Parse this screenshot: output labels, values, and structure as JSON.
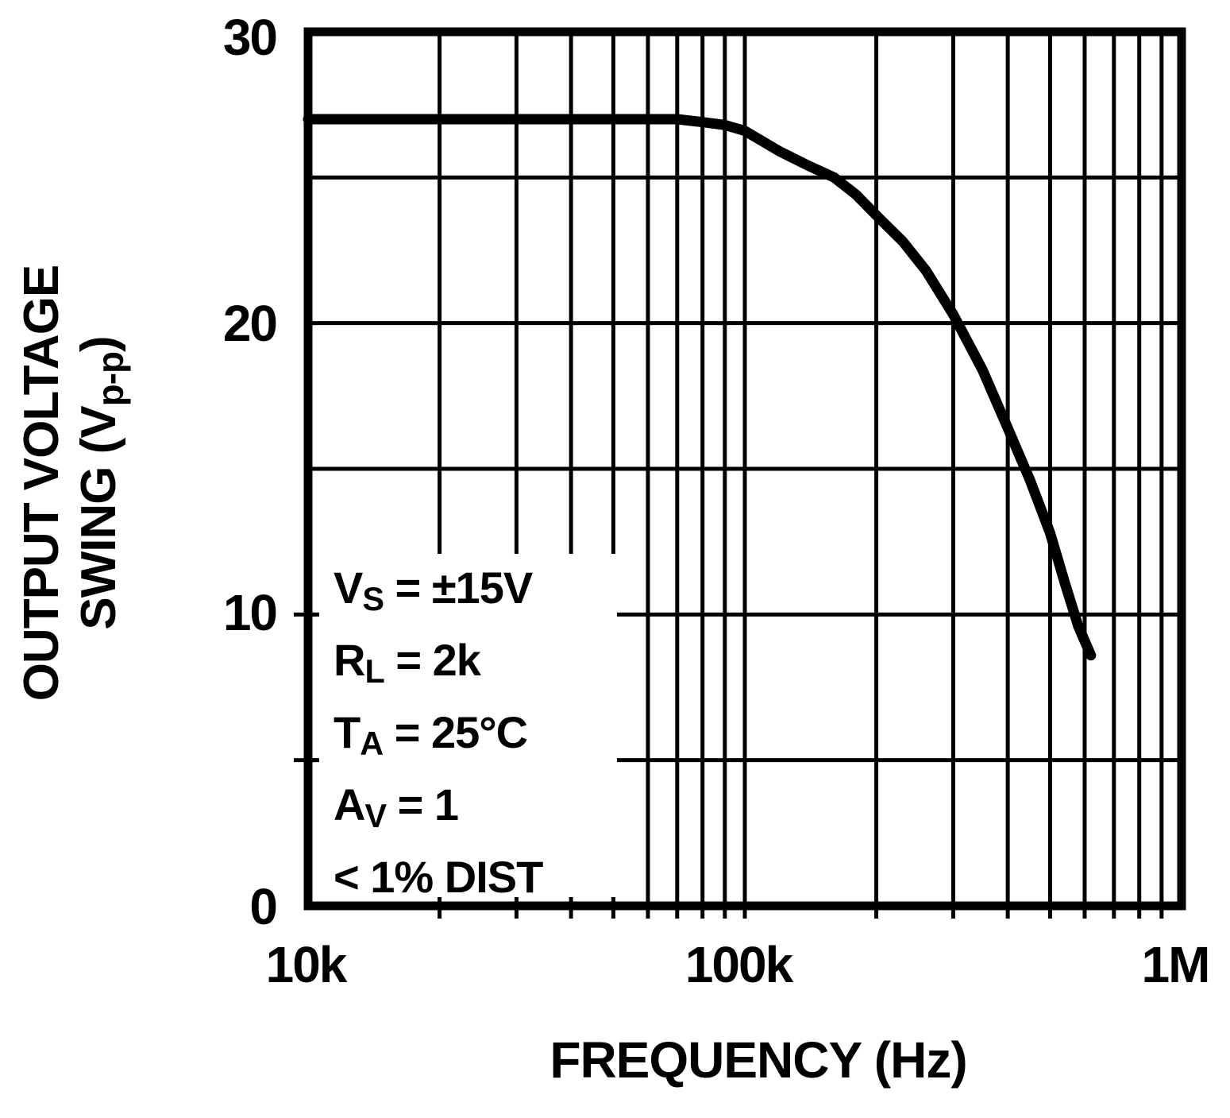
{
  "axis": {
    "y": {
      "title_line1": "OUTPUT VOLTAGE",
      "title_line2_pre": "SWING (V",
      "title_line2_sub": "p-p",
      "title_line2_post": ")",
      "ticks": [
        "30",
        "20",
        "10",
        "0"
      ]
    },
    "x": {
      "title": "FREQUENCY (Hz)",
      "ticks": [
        "10k",
        "100k",
        "1M"
      ]
    }
  },
  "conditions": {
    "lines": [
      {
        "pre": "V",
        "sub": "S",
        "post": " = ±15V"
      },
      {
        "pre": "R",
        "sub": "L",
        "post": " = 2k"
      },
      {
        "pre": "T",
        "sub": "A",
        "post": " = 25°C"
      },
      {
        "pre": "A",
        "sub": "V",
        "post": " = 1"
      },
      {
        "pre": "< 1% DIST",
        "sub": "",
        "post": ""
      }
    ]
  },
  "chart_data": {
    "type": "line",
    "xlabel": "FREQUENCY (Hz)",
    "ylabel": "OUTPUT VOLTAGE SWING (Vp-p)",
    "x_scale": "log",
    "x_range": [
      10000,
      1000000
    ],
    "y_range": [
      0,
      30
    ],
    "y_gridlines": [
      5,
      10,
      15,
      20,
      25
    ],
    "x_gridlines": [
      20000,
      30000,
      40000,
      50000,
      60000,
      70000,
      80000,
      90000,
      100000,
      200000,
      300000,
      400000,
      500000,
      600000,
      700000,
      800000,
      900000
    ],
    "left_axis_nub_values": [
      5,
      10
    ],
    "annotations": [
      "VS = ±15V",
      "RL = 2k",
      "TA = 25°C",
      "AV = 1",
      "< 1% DIST"
    ],
    "series": [
      {
        "name": "output voltage swing",
        "points": [
          [
            10000,
            27
          ],
          [
            20000,
            27
          ],
          [
            30000,
            27
          ],
          [
            40000,
            27
          ],
          [
            50000,
            27
          ],
          [
            60000,
            27
          ],
          [
            70000,
            27
          ],
          [
            80000,
            26.9
          ],
          [
            90000,
            26.8
          ],
          [
            100000,
            26.6
          ],
          [
            120000,
            25.9
          ],
          [
            140000,
            25.4
          ],
          [
            160000,
            25.0
          ],
          [
            180000,
            24.4
          ],
          [
            200000,
            23.7
          ],
          [
            230000,
            22.8
          ],
          [
            260000,
            21.8
          ],
          [
            300000,
            20.3
          ],
          [
            350000,
            18.4
          ],
          [
            400000,
            16.4
          ],
          [
            450000,
            14.6
          ],
          [
            500000,
            12.8
          ],
          [
            540000,
            11.1
          ],
          [
            580000,
            9.6
          ],
          [
            620000,
            8.6
          ]
        ]
      }
    ],
    "legend": "none",
    "grid": "on"
  }
}
